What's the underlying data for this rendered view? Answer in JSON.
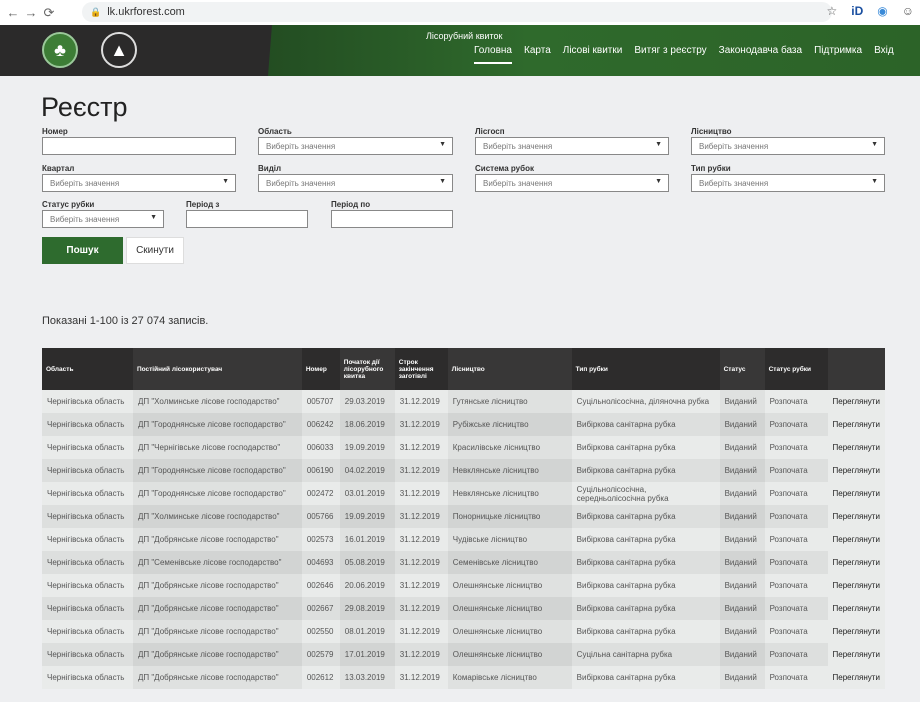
{
  "browser": {
    "url": "lk.ukrforest.com"
  },
  "header": {
    "site_title": "Лісорубний квиток",
    "menu": [
      "Головна",
      "Карта",
      "Лісові квитки",
      "Витяг з реєстру",
      "Законодавча база",
      "Підтримка",
      "Вхід"
    ],
    "active": "Головна"
  },
  "page": {
    "title": "Реєстр"
  },
  "filters": {
    "number": {
      "label": "Номер",
      "value": ""
    },
    "oblast": {
      "label": "Область",
      "placeholder": "Виберіть значення"
    },
    "lisgosp": {
      "label": "Лісгосп",
      "placeholder": "Виберіть значення"
    },
    "lisnytstvo": {
      "label": "Лісництво",
      "placeholder": "Виберіть значення"
    },
    "kvartal": {
      "label": "Квартал",
      "placeholder": "Виберіть значення"
    },
    "vydil": {
      "label": "Виділ",
      "placeholder": "Виберіть значення"
    },
    "systema": {
      "label": "Система рубок",
      "placeholder": "Виберіть значення"
    },
    "typ": {
      "label": "Тип рубки",
      "placeholder": "Виберіть значення"
    },
    "status": {
      "label": "Статус рубки",
      "placeholder": "Виберіть значення"
    },
    "period_from": {
      "label": "Період з",
      "value": ""
    },
    "period_to": {
      "label": "Період по",
      "value": ""
    }
  },
  "buttons": {
    "search": "Пошук",
    "reset": "Скинути"
  },
  "results": {
    "count_text": "Показані 1-100 із 27 074 записів."
  },
  "table": {
    "columns": [
      "Область",
      "Постійний лісокористувач",
      "Номер",
      "Початок дії лісорубного квитка",
      "Строк закінчення заготівлі",
      "Лісництво",
      "Тип рубки",
      "Статус",
      "Статус рубки",
      ""
    ],
    "rows": [
      [
        "Чернігівська область",
        "ДП \"Холминське лісове господарство\"",
        "005707",
        "29.03.2019",
        "31.12.2019",
        "Гутянське лісництво",
        "Суцільнолісосічна, діляночна рубка",
        "Виданий",
        "Розпочата",
        "Переглянути"
      ],
      [
        "Чернігівська область",
        "ДП \"Городнянське лісове господарство\"",
        "006242",
        "18.06.2019",
        "31.12.2019",
        "Рубіжське лісництво",
        "Вибіркова санітарна рубка",
        "Виданий",
        "Розпочата",
        "Переглянути"
      ],
      [
        "Чернігівська область",
        "ДП \"Чернігівське лісове господарство\"",
        "006033",
        "19.09.2019",
        "31.12.2019",
        "Красилівське лісництво",
        "Вибіркова санітарна рубка",
        "Виданий",
        "Розпочата",
        "Переглянути"
      ],
      [
        "Чернігівська область",
        "ДП \"Городнянське лісове господарство\"",
        "006190",
        "04.02.2019",
        "31.12.2019",
        "Невклянське лісництво",
        "Вибіркова санітарна рубка",
        "Виданий",
        "Розпочата",
        "Переглянути"
      ],
      [
        "Чернігівська область",
        "ДП \"Городнянське лісове господарство\"",
        "002472",
        "03.01.2019",
        "31.12.2019",
        "Невклянське лісництво",
        "Суцільнолісосічна, середньолісосічна рубка",
        "Виданий",
        "Розпочата",
        "Переглянути"
      ],
      [
        "Чернігівська область",
        "ДП \"Холминське лісове господарство\"",
        "005766",
        "19.09.2019",
        "31.12.2019",
        "Понорницьке лісництво",
        "Вибіркова санітарна рубка",
        "Виданий",
        "Розпочата",
        "Переглянути"
      ],
      [
        "Чернігівська область",
        "ДП \"Добрянське лісове господарство\"",
        "002573",
        "16.01.2019",
        "31.12.2019",
        "Чудівське лісництво",
        "Вибіркова санітарна рубка",
        "Виданий",
        "Розпочата",
        "Переглянути"
      ],
      [
        "Чернігівська область",
        "ДП \"Семенівське лісове господарство\"",
        "004693",
        "05.08.2019",
        "31.12.2019",
        "Семенівське лісництво",
        "Вибіркова санітарна рубка",
        "Виданий",
        "Розпочата",
        "Переглянути"
      ],
      [
        "Чернігівська область",
        "ДП \"Добрянське лісове господарство\"",
        "002646",
        "20.06.2019",
        "31.12.2019",
        "Олешнянське лісництво",
        "Вибіркова санітарна рубка",
        "Виданий",
        "Розпочата",
        "Переглянути"
      ],
      [
        "Чернігівська область",
        "ДП \"Добрянське лісове господарство\"",
        "002667",
        "29.08.2019",
        "31.12.2019",
        "Олешнянське лісництво",
        "Вибіркова санітарна рубка",
        "Виданий",
        "Розпочата",
        "Переглянути"
      ],
      [
        "Чернігівська область",
        "ДП \"Добрянське лісове господарство\"",
        "002550",
        "08.01.2019",
        "31.12.2019",
        "Олешнянське лісництво",
        "Вибіркова санітарна рубка",
        "Виданий",
        "Розпочата",
        "Переглянути"
      ],
      [
        "Чернігівська область",
        "ДП \"Добрянське лісове господарство\"",
        "002579",
        "17.01.2019",
        "31.12.2019",
        "Олешнянське лісництво",
        "Суцільна санітарна рубка",
        "Виданий",
        "Розпочата",
        "Переглянути"
      ],
      [
        "Чернігівська область",
        "ДП \"Добрянське лісове господарство\"",
        "002612",
        "13.03.2019",
        "31.12.2019",
        "Комарівське лісництво",
        "Вибіркова санітарна рубка",
        "Виданий",
        "Розпочата",
        "Переглянути"
      ]
    ]
  },
  "colors": {
    "accent": "#2e6b2e",
    "header_dark": "#2b2a2a",
    "table_header": "#2d2c2c"
  }
}
